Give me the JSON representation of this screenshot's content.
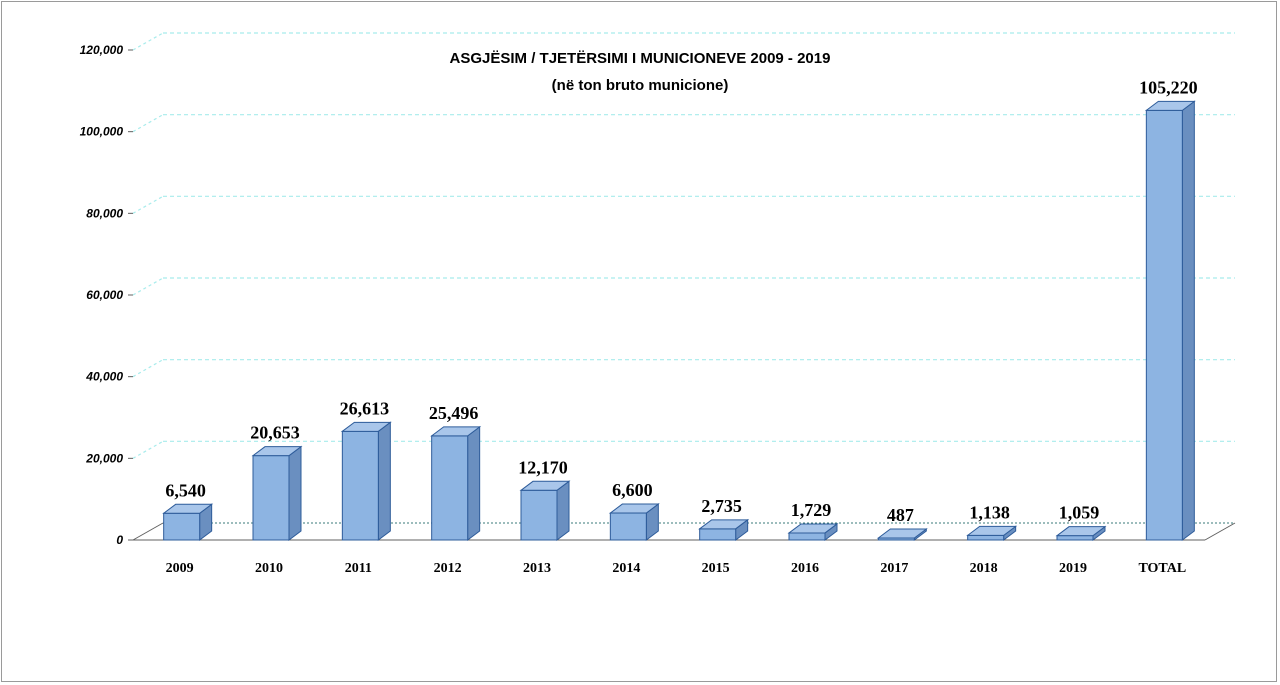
{
  "chart_data": {
    "type": "bar",
    "title": "ASGJËSIM / TJETËRSIMI I MUNICIONEVE 2009 - 2019",
    "subtitle": "(në ton bruto municione)",
    "categories": [
      "2009",
      "2010",
      "2011",
      "2012",
      "2013",
      "2014",
      "2015",
      "2016",
      "2017",
      "2018",
      "2019",
      "TOTAL"
    ],
    "values": [
      6540,
      20653,
      26613,
      25496,
      12170,
      6600,
      2735,
      1729,
      487,
      1138,
      1059,
      105220
    ],
    "data_labels": [
      "6,540",
      "20,653",
      "26,613",
      "25,496",
      "12,170",
      "6,600",
      "2,735",
      "1,729",
      "487",
      "1,138",
      "1,059",
      "105,220"
    ],
    "y_ticks": [
      "0",
      "20,000",
      "40,000",
      "60,000",
      "80,000",
      "100,000",
      "120,000"
    ],
    "xlabel": "",
    "ylabel": "",
    "ylim": [
      0,
      120000
    ],
    "grid": true,
    "style": "3d-column",
    "colors": {
      "bar_front": "#8db4e2",
      "bar_side": "#6a8fc0",
      "bar_top": "#a9c6ea",
      "bar_edge": "#2e5c9a",
      "grid": "#a8ecec",
      "axis": "#606060"
    }
  }
}
